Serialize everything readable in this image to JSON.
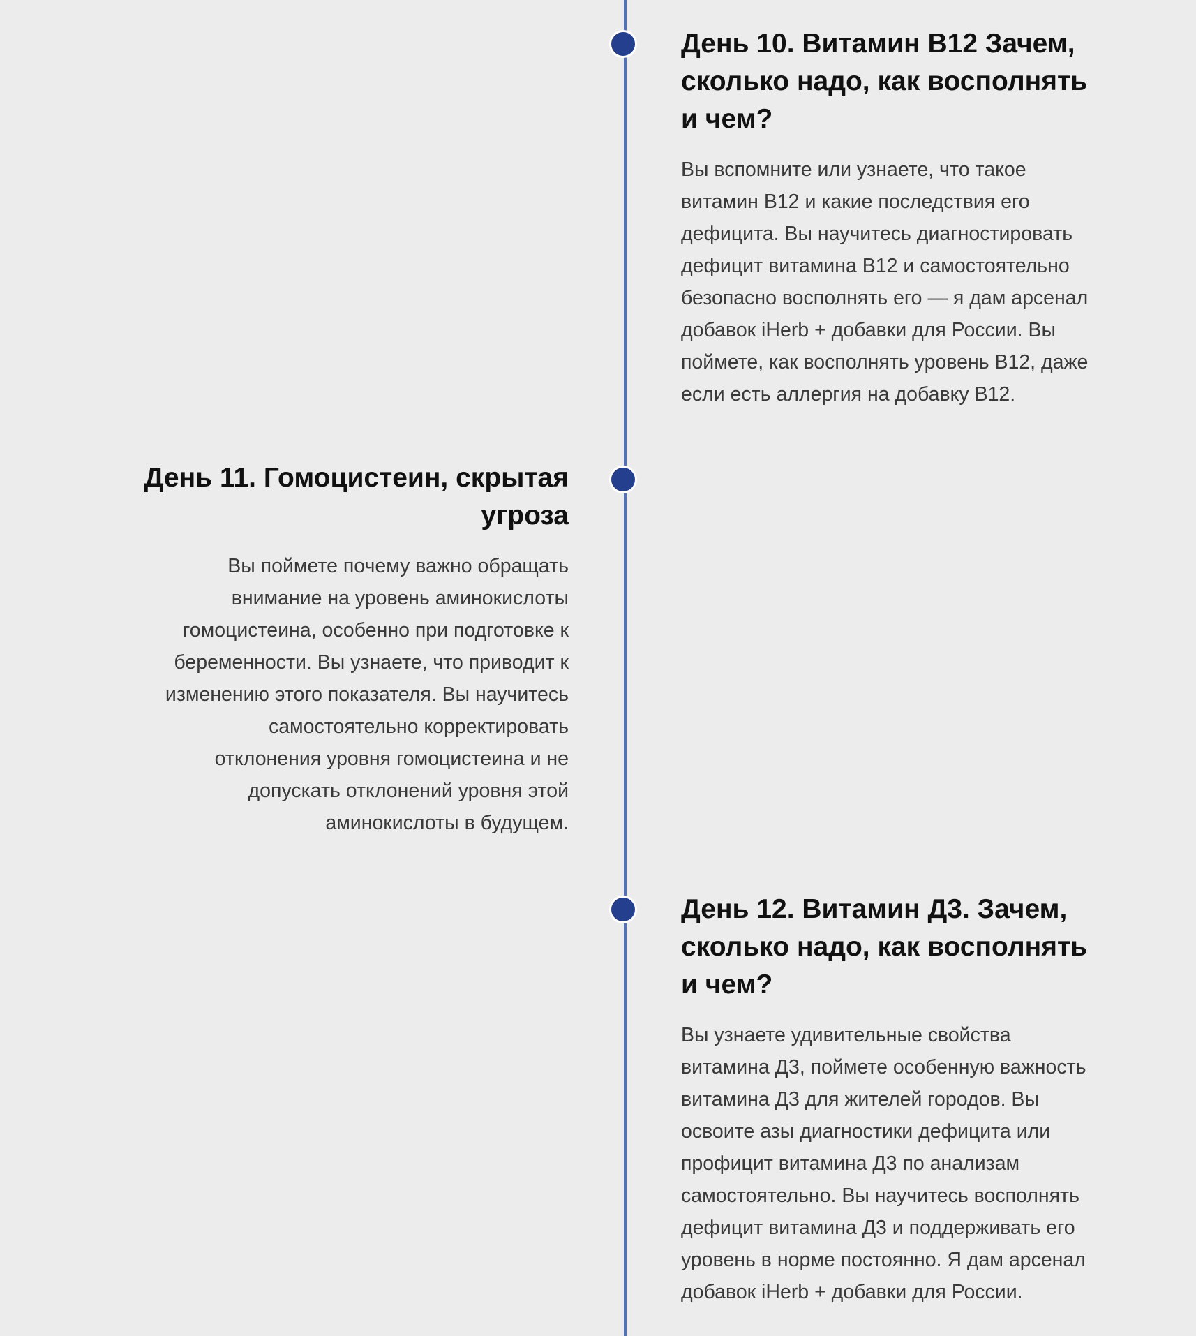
{
  "colors": {
    "line": "#5470b8",
    "dot": "#243f8e",
    "background": "#ececec"
  },
  "items": [
    {
      "title_lines": [
        "День 10. Витамин В12 Зачем,",
        "сколько надо, как восполнять",
        "и чем?"
      ],
      "desc_lines": [
        "Вы вспомните или узнаете, что такое",
        "витамин В12 и какие последствия его",
        "дефицита. Вы научитесь диагностировать",
        "дефицит витамина В12 и самостоятельно",
        "безопасно восполнять его — я дам арсенал",
        "добавок iHerb + добавки для России. Вы",
        "поймете, как восполнять уровень В12, даже",
        "если есть аллергия на добавку В12."
      ]
    },
    {
      "title_lines": [
        "День 11. Гомоцистеин, скрытая",
        "угроза"
      ],
      "desc_lines": [
        "Вы поймете почему важно обращать",
        "внимание на уровень аминокислоты",
        "гомоцистеина, особенно при подготовке к",
        "беременности. Вы узнаете, что приводит к",
        "изменению этого показателя. Вы научитесь",
        "самостоятельно корректировать",
        "отклонения уровня гомоцистеина и не",
        "допускать отклонений уровня этой",
        "аминокислоты в будущем."
      ]
    },
    {
      "title_lines": [
        "День 12. Витамин Д3. Зачем,",
        "сколько надо, как восполнять",
        "и чем?"
      ],
      "desc_lines": [
        "Вы узнаете удивительные свойства",
        "витамина Д3, поймете особенную важность",
        "витамина Д3 для жителей городов. Вы",
        "освоите азы диагностики дефицита или",
        "профицит витамина Д3 по анализам",
        "самостоятельно. Вы научитесь восполнять",
        "дефицит витамина Д3 и поддерживать его",
        "уровень в норме постоянно. Я дам арсенал",
        "добавок iHerb + добавки для России."
      ]
    }
  ]
}
